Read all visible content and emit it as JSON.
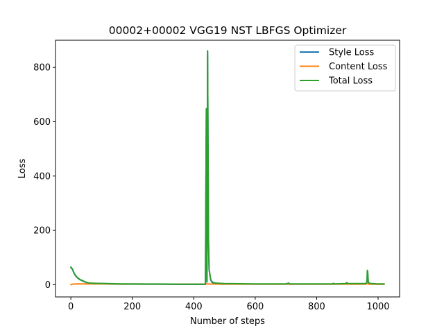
{
  "chart_data": {
    "type": "line",
    "title": "00002+00002 VGG19 NST LBFGS Optimizer",
    "xlabel": "Number of steps",
    "ylabel": "Loss",
    "xlim": [
      -50,
      1070
    ],
    "ylim": [
      -45,
      900
    ],
    "xticks": [
      0,
      200,
      400,
      600,
      800,
      1000
    ],
    "yticks": [
      0,
      200,
      400,
      600,
      800
    ],
    "grid": false,
    "legend_position": "top-right",
    "series": [
      {
        "name": "Style Loss",
        "color": "#1f77b4",
        "points": [
          [
            0,
            63
          ],
          [
            5,
            57
          ],
          [
            10,
            43
          ],
          [
            15,
            33
          ],
          [
            20,
            27
          ],
          [
            25,
            22
          ],
          [
            30,
            18
          ],
          [
            40,
            13
          ],
          [
            50,
            8
          ],
          [
            60,
            5
          ],
          [
            80,
            4
          ],
          [
            120,
            3
          ],
          [
            160,
            2
          ],
          [
            200,
            2
          ],
          [
            250,
            1.5
          ],
          [
            300,
            1.5
          ],
          [
            350,
            1
          ],
          [
            400,
            1
          ],
          [
            438,
            1
          ],
          [
            441,
            645
          ],
          [
            443,
            10
          ],
          [
            445,
            858
          ],
          [
            448,
            160
          ],
          [
            450,
            55
          ],
          [
            455,
            18
          ],
          [
            460,
            8
          ],
          [
            470,
            5
          ],
          [
            500,
            3
          ],
          [
            600,
            2
          ],
          [
            700,
            2
          ],
          [
            709,
            5
          ],
          [
            712,
            2
          ],
          [
            800,
            2
          ],
          [
            850,
            2
          ],
          [
            855,
            4
          ],
          [
            858,
            2
          ],
          [
            895,
            3
          ],
          [
            898,
            7
          ],
          [
            901,
            3
          ],
          [
            960,
            3
          ],
          [
            964,
            11
          ],
          [
            965,
            51
          ],
          [
            966,
            48
          ],
          [
            968,
            9
          ],
          [
            972,
            4
          ],
          [
            980,
            3
          ],
          [
            1000,
            2
          ],
          [
            1020,
            2
          ]
        ]
      },
      {
        "name": "Content Loss",
        "color": "#ff7f0e",
        "points": [
          [
            0,
            0
          ],
          [
            5,
            2
          ],
          [
            10,
            2.5
          ],
          [
            20,
            3
          ],
          [
            50,
            3
          ],
          [
            100,
            3
          ],
          [
            200,
            2.5
          ],
          [
            300,
            2
          ],
          [
            400,
            2
          ],
          [
            438,
            2
          ],
          [
            441,
            3
          ],
          [
            445,
            3
          ],
          [
            450,
            2.5
          ],
          [
            500,
            2
          ],
          [
            600,
            2
          ],
          [
            700,
            2
          ],
          [
            800,
            2
          ],
          [
            900,
            2
          ],
          [
            960,
            2
          ],
          [
            965,
            5
          ],
          [
            968,
            2
          ],
          [
            1000,
            1.5
          ],
          [
            1020,
            1.5
          ]
        ]
      },
      {
        "name": "Total Loss",
        "color": "#2ca02c",
        "points": [
          [
            0,
            65
          ],
          [
            5,
            58
          ],
          [
            10,
            44
          ],
          [
            15,
            34
          ],
          [
            20,
            28
          ],
          [
            25,
            23
          ],
          [
            30,
            19
          ],
          [
            40,
            14
          ],
          [
            50,
            9
          ],
          [
            60,
            6
          ],
          [
            80,
            5
          ],
          [
            120,
            4
          ],
          [
            160,
            3
          ],
          [
            200,
            3
          ],
          [
            250,
            2.5
          ],
          [
            300,
            2.5
          ],
          [
            350,
            2
          ],
          [
            400,
            2
          ],
          [
            438,
            2
          ],
          [
            441,
            648
          ],
          [
            443,
            12
          ],
          [
            445,
            861
          ],
          [
            448,
            162
          ],
          [
            450,
            57
          ],
          [
            455,
            20
          ],
          [
            460,
            10
          ],
          [
            470,
            6
          ],
          [
            500,
            4
          ],
          [
            600,
            3
          ],
          [
            700,
            3
          ],
          [
            709,
            6
          ],
          [
            712,
            3
          ],
          [
            800,
            3
          ],
          [
            850,
            3
          ],
          [
            855,
            5
          ],
          [
            858,
            3
          ],
          [
            895,
            4
          ],
          [
            898,
            8
          ],
          [
            901,
            4
          ],
          [
            960,
            4
          ],
          [
            964,
            12
          ],
          [
            965,
            53
          ],
          [
            966,
            50
          ],
          [
            968,
            10
          ],
          [
            972,
            5
          ],
          [
            980,
            4
          ],
          [
            1000,
            3
          ],
          [
            1020,
            3
          ]
        ]
      }
    ]
  }
}
